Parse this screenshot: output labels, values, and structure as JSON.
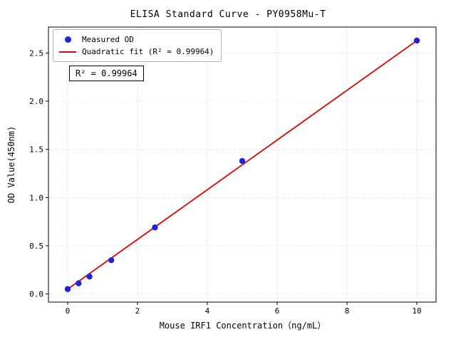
{
  "chart_data": {
    "type": "scatter",
    "title": "ELISA Standard Curve - PY0958Mu-T",
    "xlabel": "Mouse IRF1 Concentration（ng/mL）",
    "ylabel": "OD Value(450nm)",
    "xlim": [
      -0.55,
      10.55
    ],
    "ylim": [
      -0.085,
      2.77
    ],
    "xtick_values": [
      0,
      2,
      4,
      6,
      8,
      10
    ],
    "xtick_labels": [
      "0",
      "2",
      "4",
      "6",
      "8",
      "10"
    ],
    "ytick_values": [
      0.0,
      0.5,
      1.0,
      1.5,
      2.0,
      2.5
    ],
    "ytick_labels": [
      "0.0",
      "0.5",
      "1.0",
      "1.5",
      "2.0",
      "2.5"
    ],
    "grid": true,
    "grid_color": "#c8c8c8",
    "legend_position": "upper left",
    "annotation": "R² = 0.99964",
    "series": [
      {
        "name": "Measured OD",
        "type": "scatter",
        "color": "#2222dd",
        "points": [
          [
            0,
            0.05
          ],
          [
            0.313,
            0.11
          ],
          [
            0.625,
            0.18
          ],
          [
            1.25,
            0.35
          ],
          [
            2.5,
            0.69
          ],
          [
            5,
            1.38
          ],
          [
            10,
            2.63
          ]
        ]
      },
      {
        "name": "Quadratic fit (R² = 0.99964)",
        "type": "line",
        "color": "#e60000",
        "points": [
          [
            0,
            0.05
          ],
          [
            2,
            0.566
          ],
          [
            4,
            1.082
          ],
          [
            6,
            1.598
          ],
          [
            8,
            2.114
          ],
          [
            10,
            2.63
          ]
        ]
      }
    ]
  }
}
